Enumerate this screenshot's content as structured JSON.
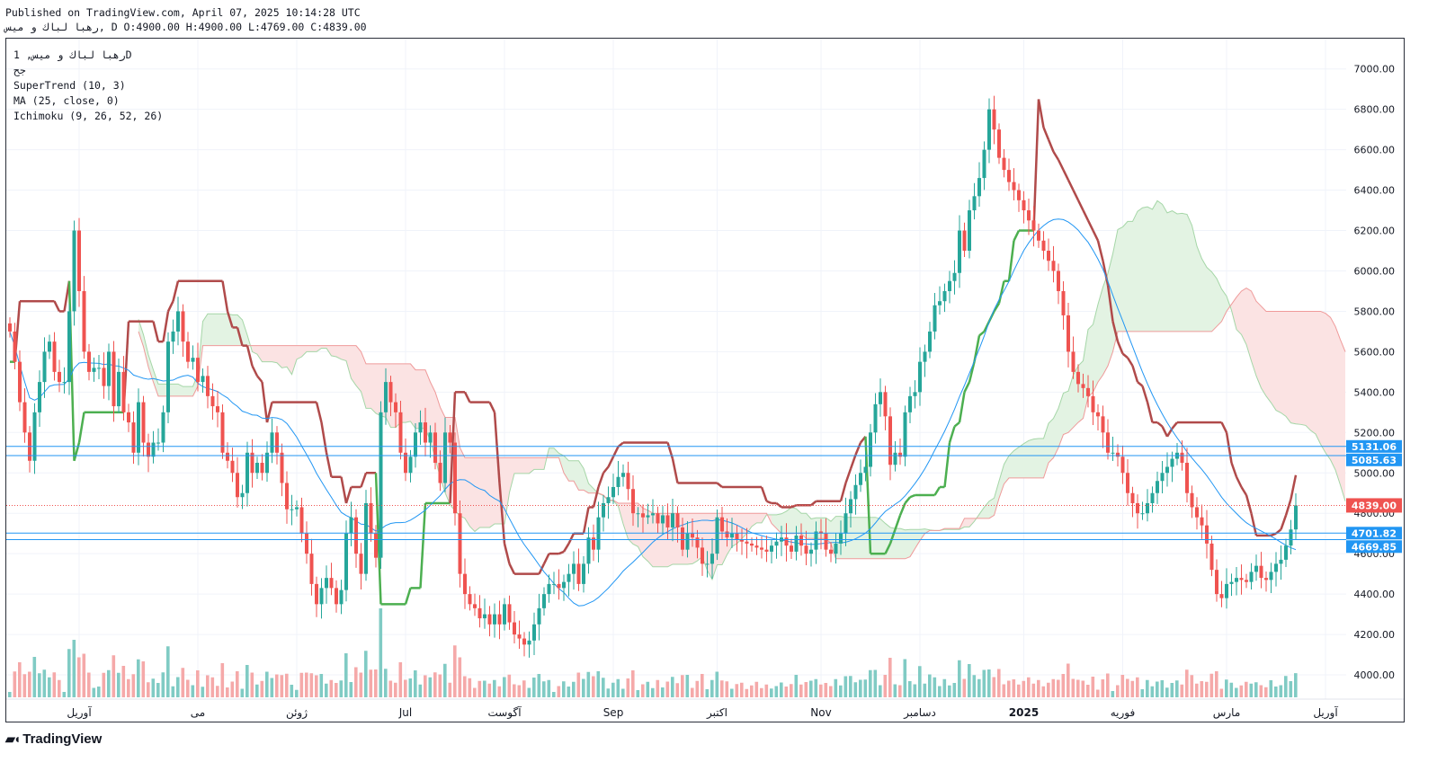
{
  "header": {
    "published": "Published on TradingView.com, April 07, 2025 10:14:28 UTC",
    "ohlc_line": "رهبا لباك و ميس, D O:4900.00 H:4900.00 L:4769.00 C:4839.00"
  },
  "legend": {
    "symbol_line": "رهبا لباك و ميس, 1D",
    "exchange": "جح",
    "supertrend": "SuperTrend (10, 3)",
    "ma": "MA (25, close, 0)",
    "ichimoku": "Ichimoku (9, 26, 52, 26)"
  },
  "brand": {
    "name": "TradingView",
    "icon": "tradingview-logo-icon"
  },
  "colors": {
    "up": "#26a69a",
    "down": "#ef5350",
    "ma": "#2196f3",
    "supertrend_up": "#4caf50",
    "supertrend_down": "#b04a4a",
    "cloud_red": "#fbe3e3",
    "cloud_green": "#e3f3e3"
  },
  "chart_data": {
    "type": "candlestick",
    "y_axis": {
      "ylim": [
        3880,
        7150
      ],
      "ticks": [
        4000,
        4200,
        4400,
        4600,
        4800,
        5000,
        5200,
        5400,
        5600,
        5800,
        6000,
        6200,
        6400,
        6600,
        6800,
        7000
      ],
      "tick_labels": [
        "4000.00",
        "4200.00",
        "4400.00",
        "4600.00",
        "4800.00",
        "5000.00",
        "5200.00",
        "5400.00",
        "5600.00",
        "5800.00",
        "6000.00",
        "6200.00",
        "6400.00",
        "6600.00",
        "6800.00",
        "7000.00"
      ]
    },
    "x_axis": {
      "labels": [
        "آوریل",
        "می",
        "ژوئن",
        "Jul",
        "آگوست",
        "Sep",
        "اکتبر",
        "Nov",
        "دسامبر",
        "2025",
        "فوریه",
        "مارس",
        "آوریل"
      ],
      "label_bars": [
        14,
        38,
        58,
        80,
        100,
        122,
        143,
        164,
        184,
        205,
        225,
        246,
        266
      ]
    },
    "horizontal_levels": [
      {
        "label": "5131.06",
        "value": 5131.06,
        "color": "#2196f3"
      },
      {
        "label": "5085.63",
        "value": 5085.63,
        "color": "#2196f3"
      },
      {
        "label": "4701.82",
        "value": 4701.82,
        "color": "#2196f3"
      },
      {
        "label": "4669.85",
        "value": 4669.85,
        "color": "#2196f3"
      }
    ],
    "last_price": {
      "label": "4839.00",
      "value": 4839.0,
      "color": "#ef5350"
    },
    "close_series": [
      5700,
      5550,
      5350,
      5200,
      5060,
      5300,
      5450,
      5600,
      5650,
      5500,
      5450,
      5450,
      5800,
      6200,
      5900,
      5600,
      5500,
      5520,
      5520,
      5430,
      5600,
      5330,
      5500,
      5300,
      5250,
      5100,
      5350,
      5150,
      5080,
      5150,
      5150,
      5300,
      5650,
      5700,
      5800,
      5650,
      5550,
      5570,
      5450,
      5480,
      5380,
      5330,
      5300,
      5100,
      5060,
      5000,
      4880,
      4900,
      5100,
      5000,
      5050,
      5000,
      5100,
      5200,
      5100,
      4950,
      4820,
      4820,
      4830,
      4700,
      4600,
      4450,
      4350,
      4430,
      4480,
      4430,
      4350,
      4420,
      4700,
      4780,
      4600,
      4500,
      4850,
      4700,
      4580,
      5300,
      5450,
      5350,
      5300,
      5100,
      5000,
      5080,
      5200,
      5250,
      5150,
      5200,
      5050,
      4950,
      5200,
      5150,
      4800,
      4500,
      4400,
      4350,
      4330,
      4280,
      4300,
      4250,
      4300,
      4250,
      4350,
      4260,
      4200,
      4180,
      4150,
      4170,
      4250,
      4330,
      4400,
      4450,
      4450,
      4430,
      4460,
      4500,
      4550,
      4450,
      4550,
      4680,
      4620,
      4780,
      4850,
      4880,
      4930,
      4980,
      5000,
      4920,
      4800,
      4800,
      4780,
      4790,
      4800,
      4750,
      4790,
      4730,
      4800,
      4730,
      4620,
      4700,
      4680,
      4630,
      4550,
      4550,
      4600,
      4780,
      4710,
      4680,
      4700,
      4670,
      4660,
      4650,
      4640,
      4630,
      4620,
      4610,
      4640,
      4660,
      4680,
      4640,
      4610,
      4690,
      4640,
      4600,
      4620,
      4710,
      4700,
      4620,
      4600,
      4650,
      4700,
      4800,
      4870,
      4940,
      5000,
      5030,
      5200,
      5340,
      5400,
      5280,
      5040,
      5100,
      5080,
      5300,
      5380,
      5400,
      5550,
      5600,
      5700,
      5830,
      5850,
      5900,
      5950,
      5990,
      6200,
      6100,
      6300,
      6370,
      6460,
      6600,
      6800,
      6700,
      6560,
      6500,
      6440,
      6400,
      6350,
      6300,
      6250,
      6200,
      6150,
      6100,
      6050,
      6000,
      5900,
      5780,
      5600,
      5500,
      5440,
      5420,
      5380,
      5300,
      5280,
      5200,
      5100,
      5100,
      5080,
      5000,
      4900,
      4850,
      4800,
      4800,
      4850,
      4900,
      4960,
      5000,
      5030,
      5070,
      5100,
      5050,
      4900,
      4830,
      4780,
      4740,
      4650,
      4520,
      4400,
      4380,
      4450,
      4460,
      4480,
      4470,
      4460,
      4510,
      4540,
      4480,
      4470,
      4510,
      4550,
      4570,
      4640,
      4720,
      4839
    ],
    "volume_note": "volume histogram at bottom, colored by candle direction"
  }
}
